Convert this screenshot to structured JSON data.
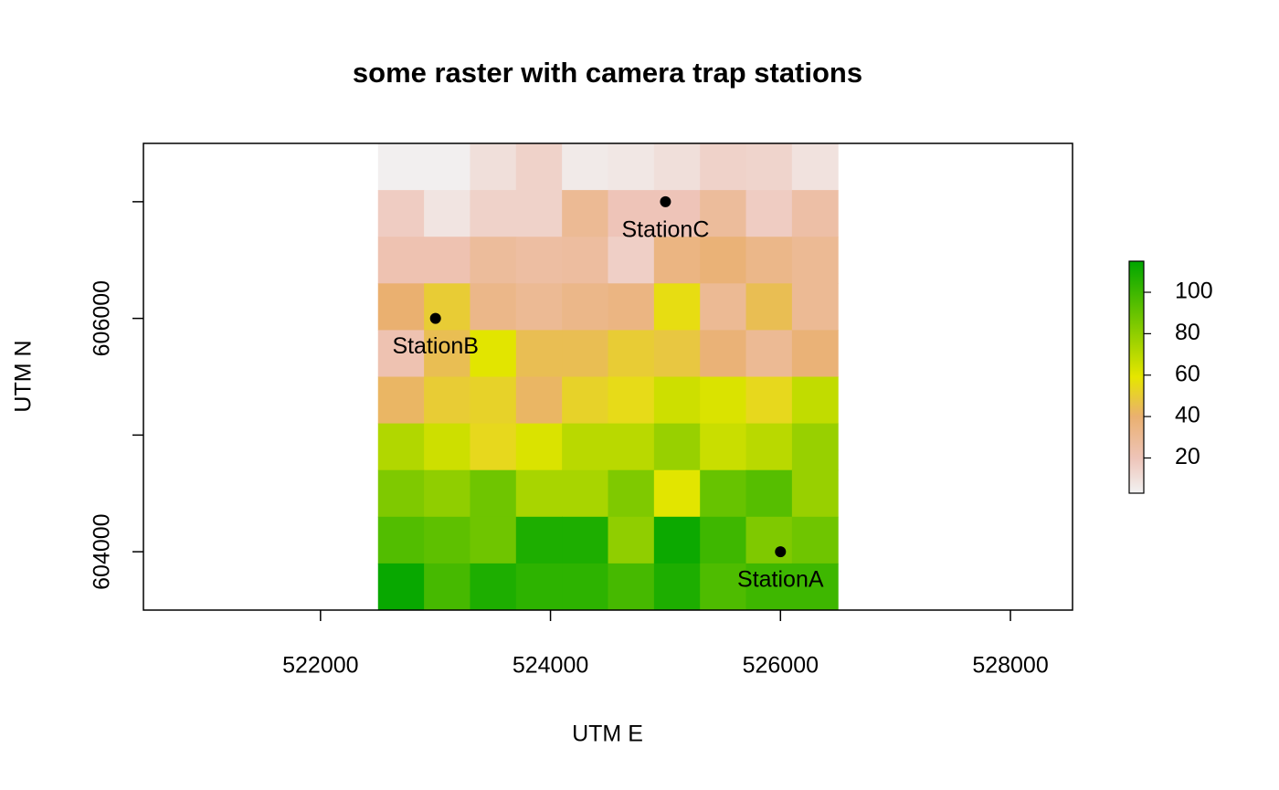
{
  "chart_data": {
    "type": "raster",
    "title": "some raster with camera trap stations",
    "x_label": "UTM E",
    "y_label": "UTM N",
    "xlim": [
      520460,
      528540
    ],
    "ylim": [
      603500,
      607500
    ],
    "xticks": [
      522000,
      524000,
      526000,
      528000
    ],
    "yticks": [
      604000,
      {
        "value": 605000,
        "label": null
      },
      606000,
      {
        "value": 607000,
        "label": null
      }
    ],
    "raster_xlim": [
      522500,
      526500
    ],
    "raster_ylim": [
      603500,
      607500
    ],
    "values": [
      [
        4,
        4,
        10,
        15,
        6,
        7,
        10,
        15,
        14,
        9
      ],
      [
        17,
        8,
        15,
        15,
        30,
        20,
        20,
        28,
        17,
        25
      ],
      [
        22,
        22,
        28,
        26,
        27,
        16,
        35,
        38,
        33,
        30
      ],
      [
        40,
        50,
        33,
        30,
        33,
        35,
        56,
        30,
        45,
        30
      ],
      [
        22,
        45,
        60,
        45,
        45,
        50,
        48,
        38,
        30,
        38
      ],
      [
        42,
        50,
        52,
        42,
        52,
        55,
        65,
        62,
        54,
        68
      ],
      [
        72,
        65,
        54,
        62,
        70,
        70,
        78,
        66,
        70,
        78
      ],
      [
        84,
        80,
        88,
        74,
        74,
        84,
        60,
        90,
        94,
        78
      ],
      [
        95,
        92,
        88,
        108,
        108,
        80,
        112,
        100,
        84,
        88
      ],
      [
        113,
        98,
        108,
        104,
        104,
        98,
        108,
        96,
        100,
        100
      ]
    ],
    "colorscale": [
      [
        3,
        "#F2F2F2"
      ],
      [
        20,
        "#EEC4B8"
      ],
      [
        40,
        "#EAB070"
      ],
      [
        59,
        "#E6E600"
      ],
      [
        115,
        "#00A600"
      ]
    ],
    "zlim": [
      3,
      115
    ],
    "zticks": [
      20,
      40,
      60,
      80,
      100
    ],
    "stations": {
      "names": [
        "StationA",
        "StationB",
        "StationC"
      ],
      "x": [
        526000,
        523000,
        525000
      ],
      "y": [
        604000,
        606000,
        607000
      ],
      "color": "#000000"
    }
  }
}
